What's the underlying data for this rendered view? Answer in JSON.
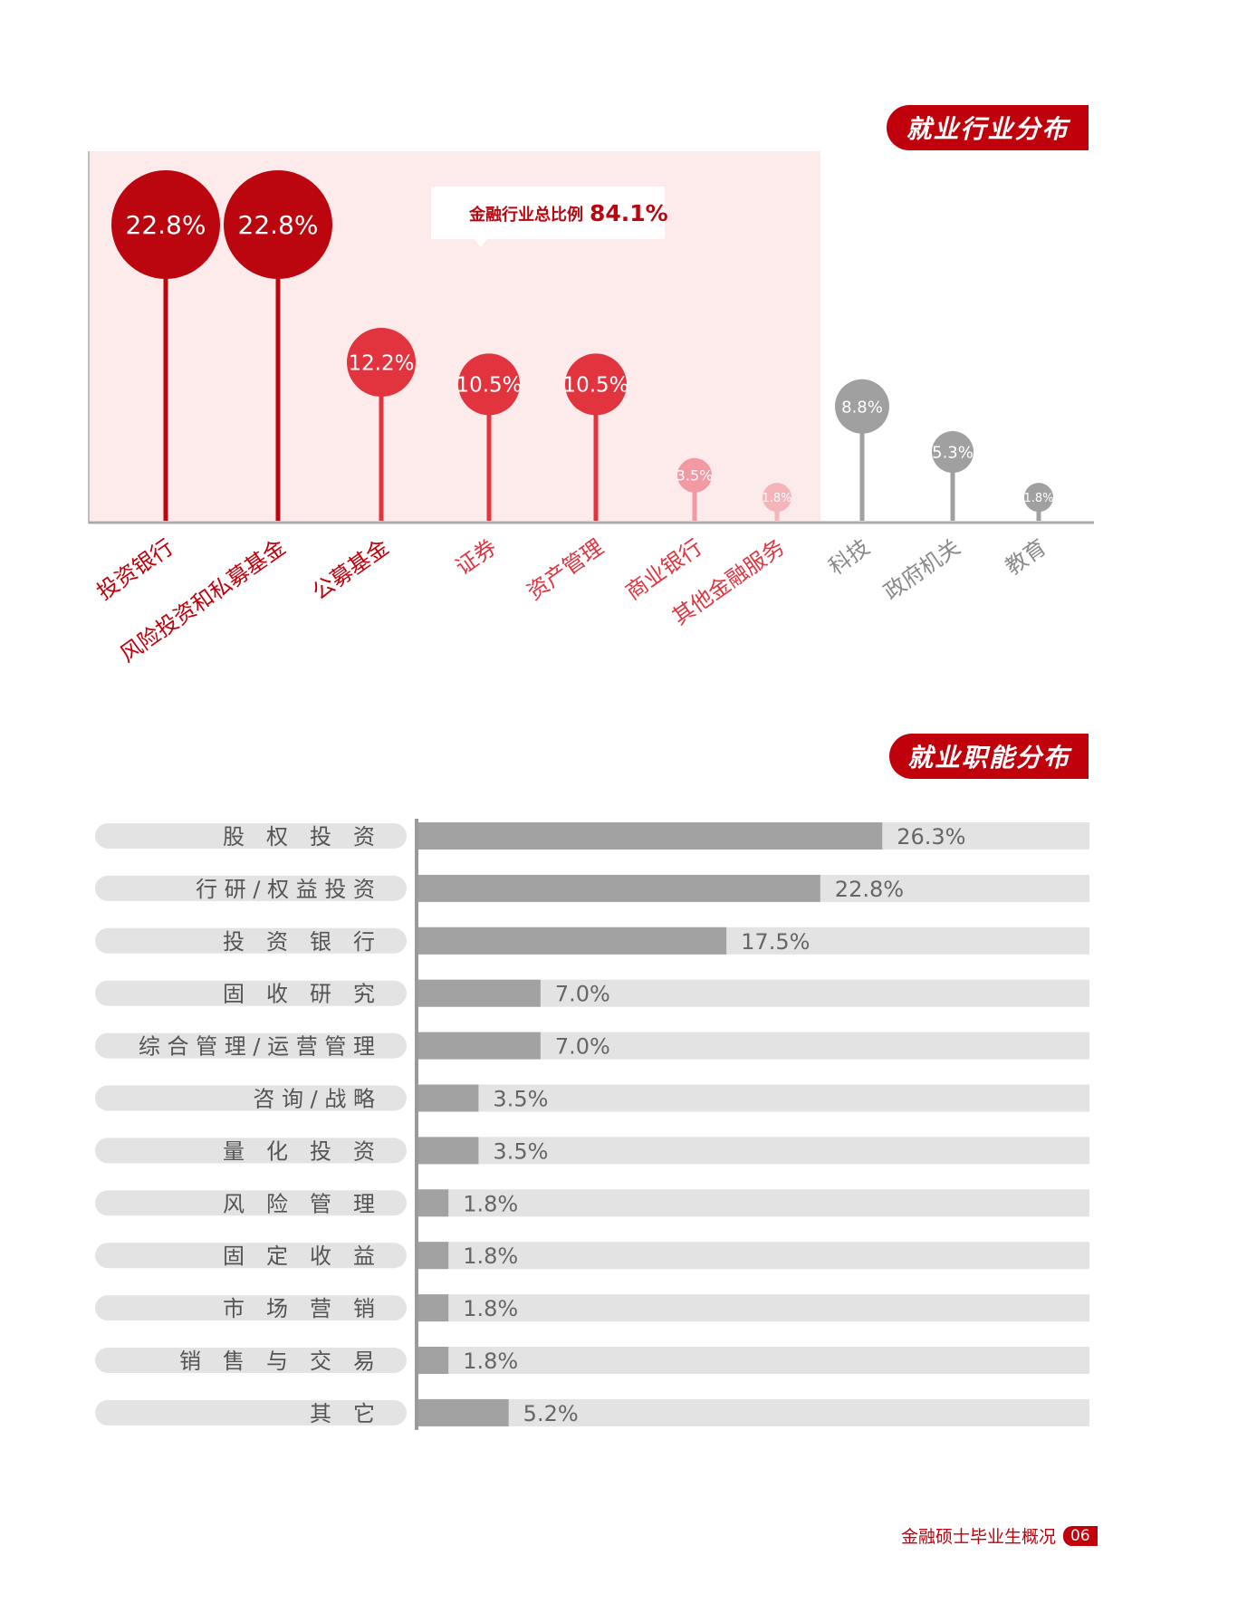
{
  "industry_section": {
    "title": "就业行业分布"
  },
  "function_section": {
    "title": "就业职能分布"
  },
  "callout": {
    "label": "金融行业总比例",
    "value": "84.1%"
  },
  "footer": {
    "text": "金融硕士毕业生概况",
    "page": "06"
  },
  "colors": {
    "dark_red": "#bb0610",
    "red": "#e2343f",
    "pink": "#f19aa3",
    "light_pink": "#f4b4ba",
    "gray": "#a0a0a0",
    "highlight_bg": "#fdebeb",
    "track_gray": "#e3e3e3",
    "bar_gray": "#a2a2a2"
  },
  "chart_data": [
    {
      "type": "lollipop",
      "title": "就业行业分布",
      "unit": "%",
      "highlighted_group": "金融行业总比例 84.1%",
      "series": [
        {
          "label": "投资银行",
          "value": 22.8,
          "display": "22.8%",
          "color": "#bb0610",
          "group": "finance"
        },
        {
          "label": "风险投资和私募基金",
          "value": 22.8,
          "display": "22.8%",
          "color": "#bb0610",
          "group": "finance"
        },
        {
          "label": "公募基金",
          "value": 12.2,
          "display": "12.2%",
          "color": "#e2343f",
          "group": "finance"
        },
        {
          "label": "证券",
          "value": 10.5,
          "display": "10.5%",
          "color": "#e2343f",
          "group": "finance"
        },
        {
          "label": "资产管理",
          "value": 10.5,
          "display": "10.5%",
          "color": "#e2343f",
          "group": "finance"
        },
        {
          "label": "商业银行",
          "value": 3.5,
          "display": "3.5%",
          "color": "#f19aa3",
          "group": "finance"
        },
        {
          "label": "其他金融服务",
          "value": 1.8,
          "display": "1.8%",
          "color": "#f4b4ba",
          "group": "finance"
        },
        {
          "label": "科技",
          "value": 8.8,
          "display": "8.8%",
          "color": "#a0a0a0",
          "group": "other"
        },
        {
          "label": "政府机关",
          "value": 5.3,
          "display": "5.3%",
          "color": "#a0a0a0",
          "group": "other"
        },
        {
          "label": "教育",
          "value": 1.8,
          "display": "1.8%",
          "color": "#a0a0a0",
          "group": "other"
        }
      ]
    },
    {
      "type": "bar",
      "title": "就业职能分布",
      "unit": "%",
      "xlim": [
        0,
        38
      ],
      "categories": [
        "股权投资",
        "行研/权益投资",
        "投资银行",
        "固收研究",
        "综合管理/运营管理",
        "咨询/战略",
        "量化投资",
        "风险管理",
        "固定收益",
        "市场营销",
        "销售与交易",
        "其它"
      ],
      "category_labels": [
        "股　权　投　资",
        "行 研 / 权 益 投 资",
        "投　资　银　行",
        "固　收　研　究",
        "综 合 管 理 / 运 营 管 理",
        "咨 询 / 战 略",
        "量　化　投　资",
        "风　险　管　理",
        "固　定　收　益",
        "市　场　营　销",
        "销　售　与　交　易",
        "其　它"
      ],
      "values": [
        26.3,
        22.8,
        17.5,
        7.0,
        7.0,
        3.5,
        3.5,
        1.8,
        1.8,
        1.8,
        1.8,
        5.2
      ],
      "value_labels": [
        "26.3%",
        "22.8%",
        "17.5%",
        "7.0%",
        "7.0%",
        "3.5%",
        "3.5%",
        "1.8%",
        "1.8%",
        "1.8%",
        "1.8%",
        "5.2%"
      ]
    }
  ]
}
